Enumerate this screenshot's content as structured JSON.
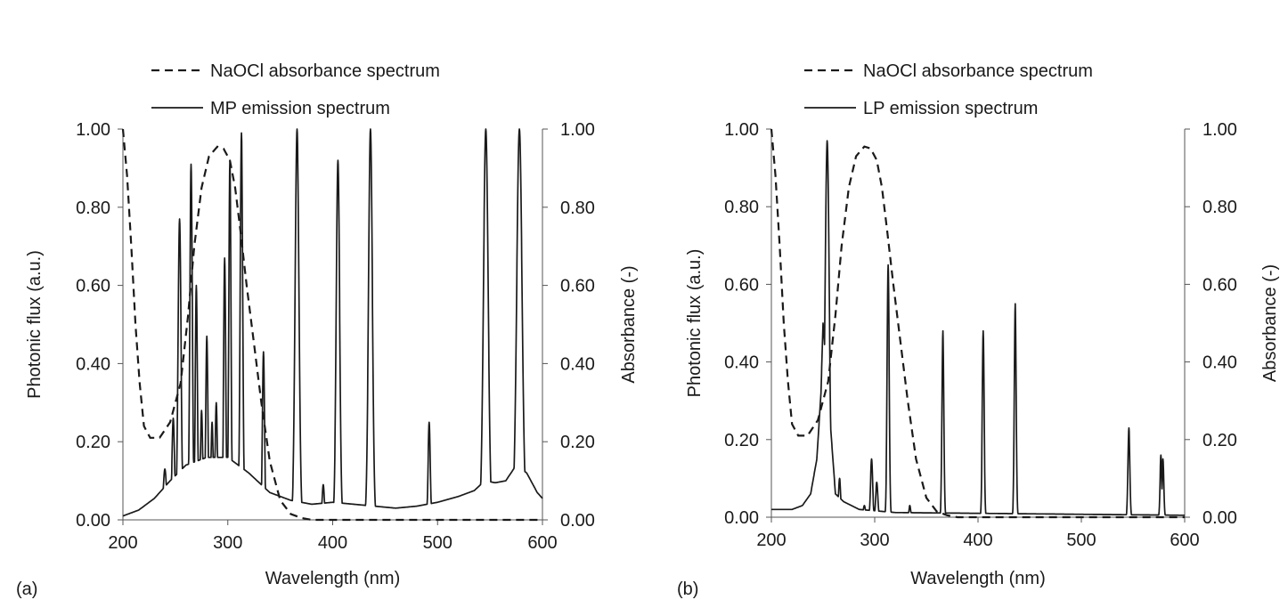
{
  "chart_data": [
    {
      "panel_label": "(a)",
      "type": "line",
      "xlabel": "Wavelength (nm)",
      "ylabel_left": "Photonic flux (a.u.)",
      "ylabel_right": "Absorbance (-)",
      "xlim": [
        200,
        600
      ],
      "ylim_left": [
        0,
        1
      ],
      "ylim_right": [
        0,
        1
      ],
      "x_ticks": [
        "200",
        "300",
        "400",
        "500",
        "600"
      ],
      "y_ticks_left": [
        "0.00",
        "0.20",
        "0.40",
        "0.60",
        "0.80",
        "1.00"
      ],
      "y_ticks_right": [
        "0.00",
        "0.20",
        "0.40",
        "0.60",
        "0.80",
        "1.00"
      ],
      "legend_position": "top",
      "series": [
        {
          "name": "NaOCl absorbance spectrum",
          "style": "dashed",
          "axis": "right",
          "x": [
            200,
            204,
            208,
            212,
            216,
            220,
            226,
            235,
            245,
            255,
            262,
            268,
            275,
            282,
            290,
            296,
            302,
            307,
            312,
            318,
            325,
            332,
            340,
            350,
            360,
            370,
            380,
            400,
            450,
            500,
            550,
            600
          ],
          "y": [
            1.0,
            0.88,
            0.7,
            0.5,
            0.35,
            0.24,
            0.21,
            0.21,
            0.25,
            0.35,
            0.52,
            0.7,
            0.85,
            0.93,
            0.955,
            0.95,
            0.92,
            0.85,
            0.74,
            0.6,
            0.45,
            0.3,
            0.15,
            0.05,
            0.015,
            0.005,
            0.0,
            0.0,
            0.0,
            0.0,
            0.0,
            0.0
          ]
        },
        {
          "name": "MP emission spectrum",
          "style": "solid",
          "axis": "left",
          "baseline": [
            [
              200,
              0.01
            ],
            [
              215,
              0.025
            ],
            [
              230,
              0.055
            ],
            [
              245,
              0.1
            ],
            [
              260,
              0.14
            ],
            [
              280,
              0.16
            ],
            [
              300,
              0.16
            ],
            [
              320,
              0.12
            ],
            [
              340,
              0.07
            ],
            [
              360,
              0.05
            ],
            [
              380,
              0.04
            ],
            [
              400,
              0.045
            ],
            [
              420,
              0.04
            ],
            [
              440,
              0.035
            ],
            [
              460,
              0.03
            ],
            [
              480,
              0.035
            ],
            [
              500,
              0.045
            ],
            [
              520,
              0.06
            ],
            [
              535,
              0.075
            ],
            [
              545,
              0.1
            ],
            [
              555,
              0.095
            ],
            [
              565,
              0.1
            ],
            [
              575,
              0.14
            ],
            [
              585,
              0.12
            ],
            [
              595,
              0.07
            ],
            [
              600,
              0.055
            ]
          ],
          "peaks": [
            [
              240,
              0.13,
              1.5
            ],
            [
              248,
              0.26,
              1.2
            ],
            [
              254,
              0.77,
              1.4
            ],
            [
              265,
              0.91,
              1.2
            ],
            [
              270,
              0.6,
              1.0
            ],
            [
              275,
              0.28,
              1.0
            ],
            [
              280,
              0.47,
              1.0
            ],
            [
              285,
              0.25,
              1.0
            ],
            [
              289,
              0.3,
              1.0
            ],
            [
              297,
              0.67,
              1.0
            ],
            [
              302,
              0.92,
              1.0
            ],
            [
              313,
              0.99,
              1.2
            ],
            [
              334,
              0.43,
              1.0
            ],
            [
              366,
              1.0,
              1.8
            ],
            [
              391,
              0.09,
              1.0
            ],
            [
              405,
              0.92,
              1.6
            ],
            [
              436,
              1.0,
              1.8
            ],
            [
              492,
              0.25,
              1.0
            ],
            [
              546,
              1.0,
              2.2
            ],
            [
              578,
              1.0,
              2.5
            ]
          ]
        }
      ]
    },
    {
      "panel_label": "(b)",
      "type": "line",
      "xlabel": "Wavelength (nm)",
      "ylabel_left": "Photonic flux (a.u.)",
      "ylabel_right": "Absorbance (-)",
      "xlim": [
        200,
        600
      ],
      "ylim_left": [
        0,
        1
      ],
      "ylim_right": [
        0,
        1
      ],
      "x_ticks": [
        "200",
        "300",
        "400",
        "500",
        "600"
      ],
      "y_ticks_left": [
        "0.00",
        "0.20",
        "0.40",
        "0.60",
        "0.80",
        "1.00"
      ],
      "y_ticks_right": [
        "0.00",
        "0.20",
        "0.40",
        "0.60",
        "0.80",
        "1.00"
      ],
      "legend_position": "top",
      "series": [
        {
          "name": "NaOCl absorbance spectrum",
          "style": "dashed",
          "axis": "right",
          "x": [
            200,
            204,
            208,
            212,
            216,
            220,
            226,
            235,
            245,
            255,
            262,
            268,
            275,
            282,
            290,
            296,
            302,
            307,
            312,
            318,
            325,
            332,
            340,
            350,
            360,
            370,
            380,
            400,
            450,
            500,
            550,
            600
          ],
          "y": [
            1.0,
            0.88,
            0.7,
            0.5,
            0.35,
            0.24,
            0.21,
            0.21,
            0.25,
            0.35,
            0.52,
            0.7,
            0.85,
            0.93,
            0.955,
            0.95,
            0.92,
            0.85,
            0.74,
            0.6,
            0.45,
            0.3,
            0.15,
            0.05,
            0.015,
            0.005,
            0.0,
            0.0,
            0.0,
            0.0,
            0.0,
            0.0
          ]
        },
        {
          "name": "LP emission spectrum",
          "style": "solid",
          "axis": "left",
          "baseline": [
            [
              200,
              0.02
            ],
            [
              220,
              0.02
            ],
            [
              230,
              0.03
            ],
            [
              238,
              0.06
            ],
            [
              244,
              0.15
            ],
            [
              248,
              0.32
            ],
            [
              250,
              0.5
            ],
            [
              262,
              0.06
            ],
            [
              270,
              0.04
            ],
            [
              285,
              0.02
            ],
            [
              320,
              0.012
            ],
            [
              400,
              0.01
            ],
            [
              600,
              0.005
            ]
          ],
          "peaks": [
            [
              254,
              0.97,
              2.0
            ],
            [
              266,
              0.1,
              1.0
            ],
            [
              290,
              0.03,
              1.0
            ],
            [
              297,
              0.15,
              1.0
            ],
            [
              302,
              0.09,
              1.0
            ],
            [
              313,
              0.65,
              1.0
            ],
            [
              334,
              0.03,
              0.8
            ],
            [
              366,
              0.48,
              0.9
            ],
            [
              405,
              0.48,
              0.9
            ],
            [
              436,
              0.55,
              0.9
            ],
            [
              546,
              0.23,
              0.9
            ],
            [
              577,
              0.16,
              0.8
            ],
            [
              579,
              0.15,
              0.8
            ]
          ]
        }
      ]
    }
  ]
}
